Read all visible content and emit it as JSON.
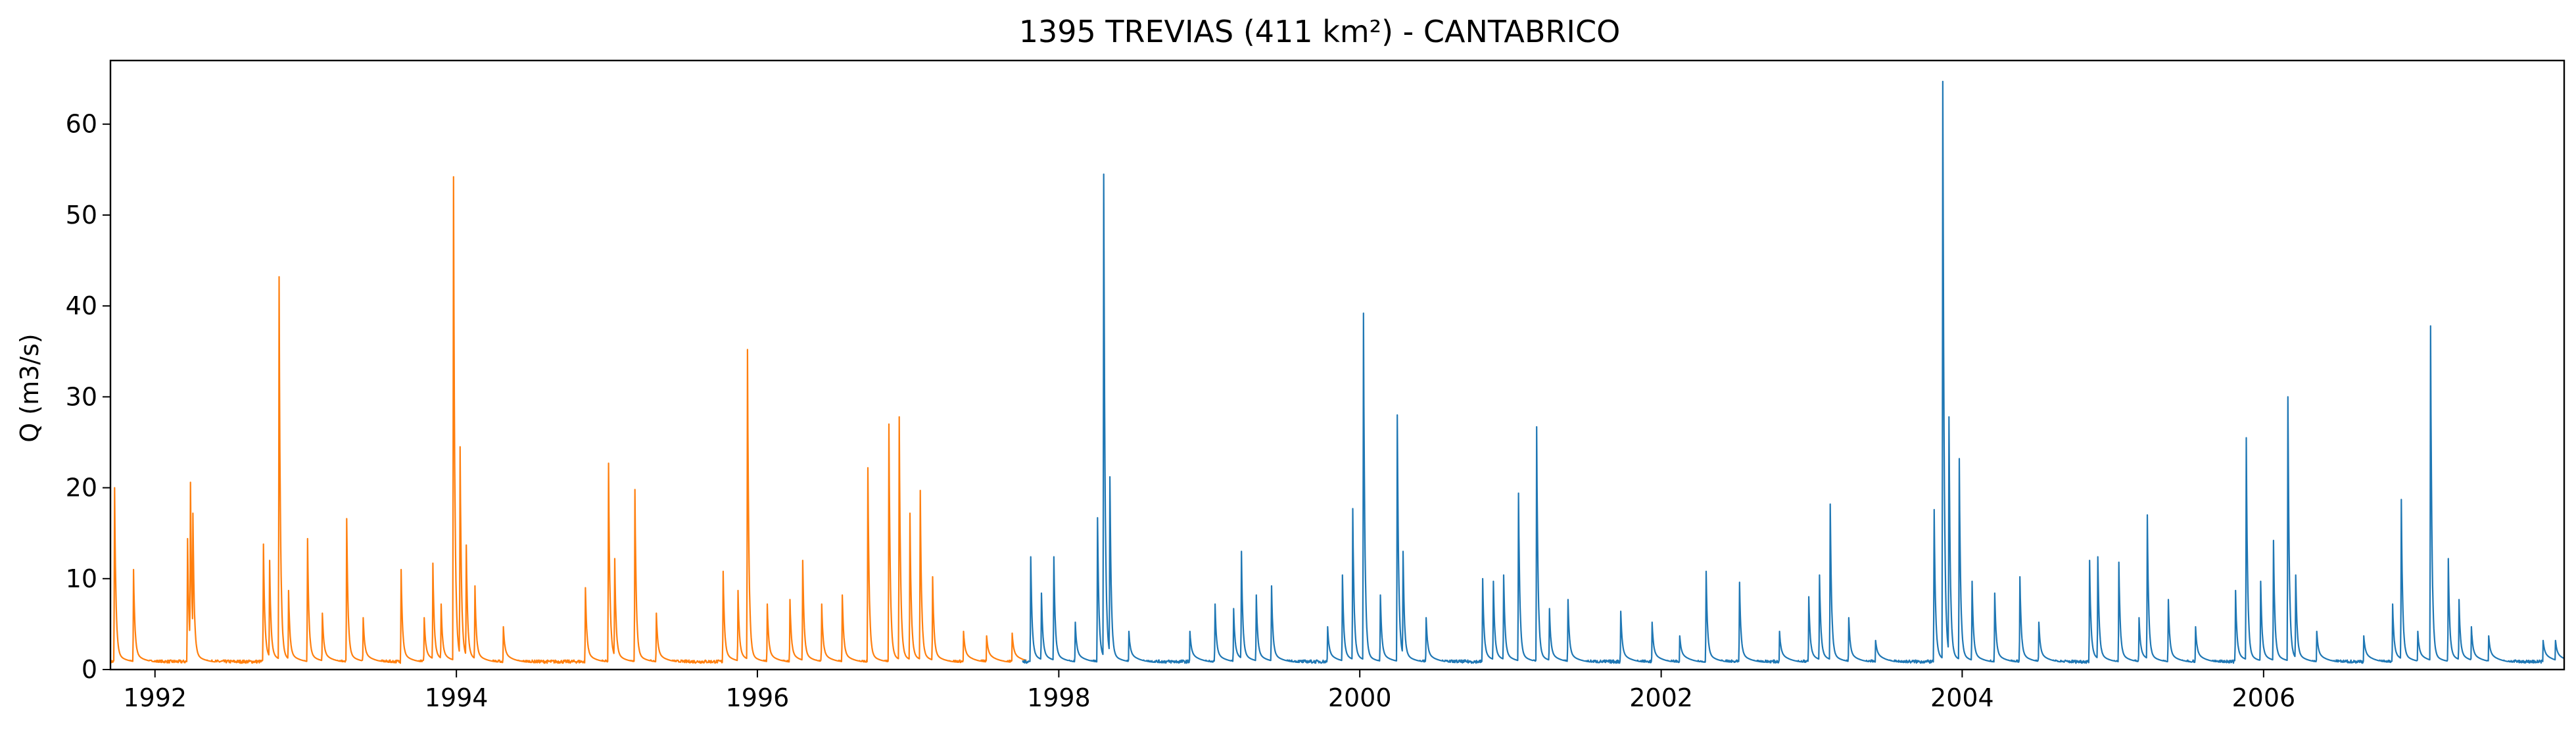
{
  "chart_data": {
    "type": "line",
    "title": "1395 TREVIAS (411 km²) - CANTABRICO",
    "xlabel": "",
    "ylabel": "Q (m3/s)",
    "xlim": [
      "1991-09-15",
      "2007-12-31"
    ],
    "ylim": [
      0,
      67
    ],
    "x_ticks": [
      "1992",
      "1994",
      "1996",
      "1998",
      "2000",
      "2002",
      "2004",
      "2006"
    ],
    "y_ticks": [
      "0",
      "10",
      "20",
      "30",
      "40",
      "50",
      "60"
    ],
    "grid": false,
    "legend": "none",
    "series": [
      {
        "color": "#ff7f0e",
        "base_flow": 0.7,
        "peaks": [
          [
            "1991-09-25",
            18.8
          ],
          [
            "1991-11-10",
            9.8
          ],
          [
            "1992-03-20",
            13.2
          ],
          [
            "1992-03-27",
            19.4
          ],
          [
            "1992-04-02",
            16.0
          ],
          [
            "1992-09-20",
            12.6
          ],
          [
            "1992-10-05",
            10.8
          ],
          [
            "1992-10-28",
            42.0
          ],
          [
            "1992-11-20",
            7.5
          ],
          [
            "1993-01-05",
            13.2
          ],
          [
            "1993-02-10",
            5.0
          ],
          [
            "1993-04-10",
            15.4
          ],
          [
            "1993-05-20",
            4.5
          ],
          [
            "1993-08-20",
            9.8
          ],
          [
            "1993-10-15",
            4.5
          ],
          [
            "1993-11-05",
            10.5
          ],
          [
            "1993-11-25",
            6.0
          ],
          [
            "1993-12-25",
            53.0
          ],
          [
            "1994-01-10",
            23.3
          ],
          [
            "1994-01-25",
            12.5
          ],
          [
            "1994-02-15",
            8.0
          ],
          [
            "1994-04-25",
            3.5
          ],
          [
            "1994-11-10",
            7.8
          ],
          [
            "1995-01-05",
            21.5
          ],
          [
            "1995-01-20",
            11.0
          ],
          [
            "1995-03-10",
            18.6
          ],
          [
            "1995-05-01",
            5.0
          ],
          [
            "1995-10-10",
            9.6
          ],
          [
            "1995-11-15",
            7.5
          ],
          [
            "1995-12-08",
            34.0
          ],
          [
            "1996-01-25",
            6.0
          ],
          [
            "1996-03-20",
            6.5
          ],
          [
            "1996-04-20",
            10.8
          ],
          [
            "1996-06-05",
            6.0
          ],
          [
            "1996-07-25",
            7.0
          ],
          [
            "1996-09-25",
            21.0
          ],
          [
            "1996-11-15",
            25.8
          ],
          [
            "1996-12-10",
            26.6
          ],
          [
            "1997-01-05",
            16.0
          ],
          [
            "1997-01-30",
            18.5
          ],
          [
            "1997-03-01",
            9.0
          ],
          [
            "1997-05-15",
            3.0
          ],
          [
            "1997-07-10",
            2.5
          ],
          [
            "1997-09-10",
            2.8
          ]
        ]
      },
      {
        "color": "#1f77b4",
        "base_flow": 0.7,
        "peaks": [
          [
            "1997-10-25",
            11.2
          ],
          [
            "1997-11-20",
            7.2
          ],
          [
            "1997-12-20",
            11.2
          ],
          [
            "1998-02-10",
            4.0
          ],
          [
            "1998-04-05",
            15.5
          ],
          [
            "1998-04-20",
            53.3
          ],
          [
            "1998-05-05",
            20.0
          ],
          [
            "1998-06-20",
            3.0
          ],
          [
            "1998-11-15",
            3.0
          ],
          [
            "1999-01-15",
            6.0
          ],
          [
            "1999-03-01",
            5.5
          ],
          [
            "1999-03-20",
            11.8
          ],
          [
            "1999-04-25",
            7.0
          ],
          [
            "1999-06-01",
            8.0
          ],
          [
            "1999-10-15",
            3.5
          ],
          [
            "1999-11-20",
            9.2
          ],
          [
            "1999-12-15",
            16.5
          ],
          [
            "2000-01-10",
            38.0
          ],
          [
            "2000-02-20",
            7.0
          ],
          [
            "2000-04-01",
            26.8
          ],
          [
            "2000-04-15",
            11.8
          ],
          [
            "2000-06-10",
            4.5
          ],
          [
            "2000-10-25",
            8.8
          ],
          [
            "2000-11-20",
            8.5
          ],
          [
            "2000-12-15",
            9.2
          ],
          [
            "2001-01-20",
            18.2
          ],
          [
            "2001-03-05",
            25.5
          ],
          [
            "2001-04-05",
            5.5
          ],
          [
            "2001-05-20",
            6.5
          ],
          [
            "2001-09-25",
            5.2
          ],
          [
            "2001-12-10",
            4.0
          ],
          [
            "2002-02-15",
            2.5
          ],
          [
            "2002-04-20",
            9.6
          ],
          [
            "2002-07-10",
            8.4
          ],
          [
            "2002-10-15",
            3.0
          ],
          [
            "2002-12-25",
            6.8
          ],
          [
            "2003-01-20",
            9.2
          ],
          [
            "2003-02-15",
            17.0
          ],
          [
            "2003-04-01",
            4.5
          ],
          [
            "2003-06-05",
            2.0
          ],
          [
            "2003-10-25",
            16.4
          ],
          [
            "2003-11-15",
            63.5
          ],
          [
            "2003-11-30",
            26.6
          ],
          [
            "2003-12-25",
            22.0
          ],
          [
            "2004-01-25",
            8.5
          ],
          [
            "2004-03-20",
            7.2
          ],
          [
            "2004-05-20",
            9.0
          ],
          [
            "2004-07-05",
            4.0
          ],
          [
            "2004-11-05",
            10.8
          ],
          [
            "2004-11-25",
            11.2
          ],
          [
            "2005-01-15",
            10.6
          ],
          [
            "2005-03-05",
            4.5
          ],
          [
            "2005-03-25",
            15.8
          ],
          [
            "2005-05-15",
            6.5
          ],
          [
            "2005-07-20",
            3.5
          ],
          [
            "2005-10-25",
            7.5
          ],
          [
            "2005-11-20",
            24.3
          ],
          [
            "2005-12-25",
            8.5
          ],
          [
            "2006-01-25",
            13.0
          ],
          [
            "2006-03-01",
            28.8
          ],
          [
            "2006-03-20",
            9.2
          ],
          [
            "2006-05-10",
            3.0
          ],
          [
            "2006-09-01",
            2.5
          ],
          [
            "2006-11-10",
            6.0
          ],
          [
            "2006-12-01",
            17.5
          ],
          [
            "2007-01-10",
            3.0
          ],
          [
            "2007-02-10",
            36.6
          ],
          [
            "2007-03-25",
            11.0
          ],
          [
            "2007-04-20",
            6.5
          ],
          [
            "2007-05-20",
            3.5
          ],
          [
            "2007-07-01",
            2.5
          ],
          [
            "2007-11-10",
            2.0
          ],
          [
            "2007-12-10",
            2.0
          ]
        ]
      }
    ]
  }
}
